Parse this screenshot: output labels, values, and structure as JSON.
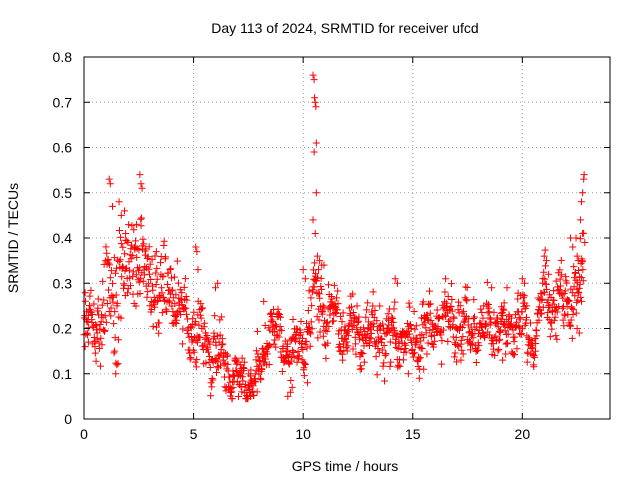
{
  "chart_data": {
    "type": "scatter",
    "title": "Day 113 of 2024, SRMTID for receiver ufcd",
    "xlabel": "GPS time / hours",
    "ylabel": "SRMTID / TECUs",
    "xlim": [
      0,
      24
    ],
    "ylim": [
      0,
      0.8
    ],
    "xticks": [
      0,
      5,
      10,
      15,
      20
    ],
    "yticks": [
      0,
      0.1,
      0.2,
      0.3,
      0.4,
      0.5,
      0.6,
      0.7,
      0.8
    ],
    "grid": true,
    "marker": "+",
    "color": "#ff0000",
    "series": [
      {
        "name": "SRMTID",
        "trend_x": [
          0,
          0.3,
          0.6,
          0.9,
          1.2,
          1.5,
          1.8,
          2.1,
          2.5,
          3.0,
          3.5,
          4.0,
          4.5,
          5.0,
          5.5,
          6.0,
          6.5,
          7.0,
          7.5,
          8.0,
          8.5,
          9.0,
          9.5,
          10.0,
          10.5,
          11.0,
          11.5,
          12.0,
          13.0,
          14.0,
          15.0,
          16.0,
          17.0,
          18.0,
          19.0,
          20.0,
          20.5,
          21.0,
          21.5,
          22.0,
          22.5,
          22.8
        ],
        "trend_y": [
          0.2,
          0.21,
          0.2,
          0.25,
          0.3,
          0.28,
          0.33,
          0.35,
          0.36,
          0.3,
          0.27,
          0.29,
          0.22,
          0.2,
          0.18,
          0.15,
          0.11,
          0.09,
          0.08,
          0.1,
          0.22,
          0.17,
          0.14,
          0.16,
          0.27,
          0.24,
          0.21,
          0.2,
          0.19,
          0.18,
          0.18,
          0.21,
          0.21,
          0.2,
          0.2,
          0.21,
          0.17,
          0.3,
          0.24,
          0.28,
          0.28,
          0.35
        ],
        "spread": [
          0.04,
          0.04,
          0.05,
          0.08,
          0.09,
          0.1,
          0.09,
          0.08,
          0.07,
          0.06,
          0.06,
          0.05,
          0.05,
          0.05,
          0.05,
          0.04,
          0.03,
          0.03,
          0.02,
          0.03,
          0.03,
          0.04,
          0.04,
          0.04,
          0.05,
          0.05,
          0.04,
          0.04,
          0.04,
          0.04,
          0.04,
          0.04,
          0.04,
          0.04,
          0.04,
          0.04,
          0.02,
          0.04,
          0.04,
          0.04,
          0.05,
          0.06
        ],
        "points": [
          [
            1.15,
            0.53
          ],
          [
            1.2,
            0.52
          ],
          [
            1.3,
            0.47
          ],
          [
            1.6,
            0.48
          ],
          [
            1.7,
            0.45
          ],
          [
            1.85,
            0.46
          ],
          [
            1.9,
            0.41
          ],
          [
            2.55,
            0.54
          ],
          [
            2.6,
            0.52
          ],
          [
            2.65,
            0.51
          ],
          [
            2.4,
            0.43
          ],
          [
            3.3,
            0.37
          ],
          [
            5.1,
            0.38
          ],
          [
            5.15,
            0.37
          ],
          [
            5.2,
            0.33
          ],
          [
            6.0,
            0.29
          ],
          [
            6.1,
            0.3
          ],
          [
            8.2,
            0.26
          ],
          [
            10.45,
            0.76
          ],
          [
            10.5,
            0.75
          ],
          [
            10.52,
            0.71
          ],
          [
            10.55,
            0.7
          ],
          [
            10.58,
            0.69
          ],
          [
            10.6,
            0.61
          ],
          [
            10.5,
            0.59
          ],
          [
            10.6,
            0.5
          ],
          [
            10.45,
            0.44
          ],
          [
            10.55,
            0.41
          ],
          [
            10.65,
            0.36
          ],
          [
            10.75,
            0.35
          ],
          [
            10.85,
            0.34
          ],
          [
            10.95,
            0.34
          ],
          [
            10.7,
            0.33
          ],
          [
            10.0,
            0.33
          ],
          [
            10.1,
            0.31
          ],
          [
            14.2,
            0.31
          ],
          [
            14.3,
            0.3
          ],
          [
            16.5,
            0.31
          ],
          [
            18.6,
            0.29
          ],
          [
            19.3,
            0.29
          ],
          [
            20.0,
            0.31
          ],
          [
            20.1,
            0.3
          ],
          [
            20.2,
            0.25
          ],
          [
            21.0,
            0.36
          ],
          [
            21.1,
            0.35
          ],
          [
            21.2,
            0.32
          ],
          [
            22.2,
            0.4
          ],
          [
            22.3,
            0.38
          ],
          [
            22.45,
            0.4
          ],
          [
            22.5,
            0.36
          ],
          [
            22.55,
            0.35
          ],
          [
            22.65,
            0.44
          ],
          [
            22.7,
            0.48
          ],
          [
            22.75,
            0.5
          ],
          [
            22.8,
            0.53
          ],
          [
            22.82,
            0.54
          ],
          [
            22.75,
            0.41
          ],
          [
            22.85,
            0.39
          ],
          [
            22.7,
            0.26
          ],
          [
            22.5,
            0.2
          ],
          [
            22.6,
            0.19
          ],
          [
            0.05,
            0.16
          ],
          [
            0.2,
            0.17
          ],
          [
            0.5,
            0.16
          ],
          [
            0.6,
            0.19
          ],
          [
            1.4,
            0.15
          ],
          [
            1.45,
            0.1
          ],
          [
            1.5,
            0.12
          ],
          [
            7.6,
            0.05
          ],
          [
            7.2,
            0.06
          ],
          [
            7.9,
            0.06
          ],
          [
            6.8,
            0.07
          ],
          [
            9.3,
            0.05
          ],
          [
            9.5,
            0.07
          ],
          [
            10.2,
            0.08
          ],
          [
            11.8,
            0.13
          ],
          [
            12.6,
            0.11
          ],
          [
            14.8,
            0.1
          ],
          [
            15.3,
            0.09
          ],
          [
            15.5,
            0.11
          ],
          [
            17.2,
            0.13
          ],
          [
            19.1,
            0.13
          ],
          [
            20.5,
            0.14
          ],
          [
            20.6,
            0.15
          ]
        ]
      }
    ]
  }
}
